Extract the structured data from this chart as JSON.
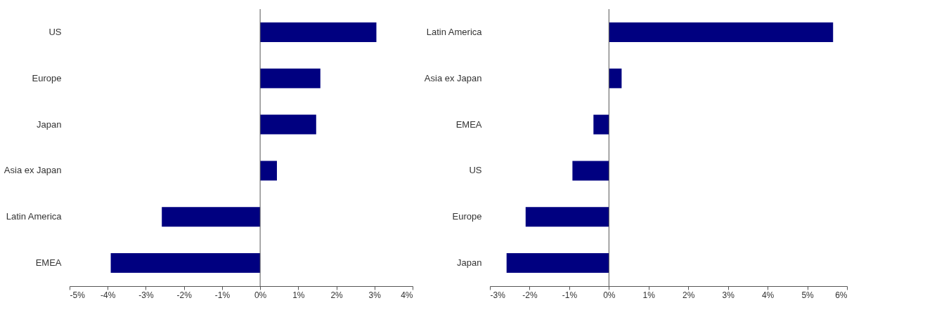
{
  "chart_data": [
    {
      "type": "bar",
      "orientation": "horizontal",
      "categories": [
        "US",
        "Europe",
        "Japan",
        "Asia ex Japan",
        "Latin America",
        "EMEA"
      ],
      "series": [
        {
          "color": "#000080",
          "values": [
            3.05,
            1.58,
            1.47,
            0.44,
            -2.58,
            -3.92
          ]
        }
      ],
      "xlim": [
        -5,
        4
      ],
      "xticks": [
        {
          "value": -5,
          "label": "-5%"
        },
        {
          "value": -4,
          "label": "-4%"
        },
        {
          "value": -3,
          "label": "-3%"
        },
        {
          "value": -2,
          "label": "-2%"
        },
        {
          "value": -1,
          "label": "-1%"
        },
        {
          "value": 0,
          "label": "0%"
        },
        {
          "value": 1,
          "label": "1%"
        },
        {
          "value": 2,
          "label": "2%"
        },
        {
          "value": 3,
          "label": "3%"
        },
        {
          "value": 4,
          "label": "4%"
        }
      ]
    },
    {
      "type": "bar",
      "orientation": "horizontal",
      "categories": [
        "Latin America",
        "Asia ex Japan",
        "EMEA",
        "US",
        "Europe",
        "Japan"
      ],
      "series": [
        {
          "color": "#000080",
          "values": [
            5.65,
            0.32,
            -0.39,
            -0.92,
            -2.1,
            -2.58
          ]
        }
      ],
      "xlim": [
        -3,
        6
      ],
      "xticks": [
        {
          "value": -3,
          "label": "-3%"
        },
        {
          "value": -2,
          "label": "-2%"
        },
        {
          "value": -1,
          "label": "-1%"
        },
        {
          "value": 0,
          "label": "0%"
        },
        {
          "value": 1,
          "label": "1%"
        },
        {
          "value": 2,
          "label": "2%"
        },
        {
          "value": 3,
          "label": "3%"
        },
        {
          "value": 4,
          "label": "4%"
        },
        {
          "value": 5,
          "label": "5%"
        },
        {
          "value": 6,
          "label": "6%"
        }
      ]
    }
  ]
}
